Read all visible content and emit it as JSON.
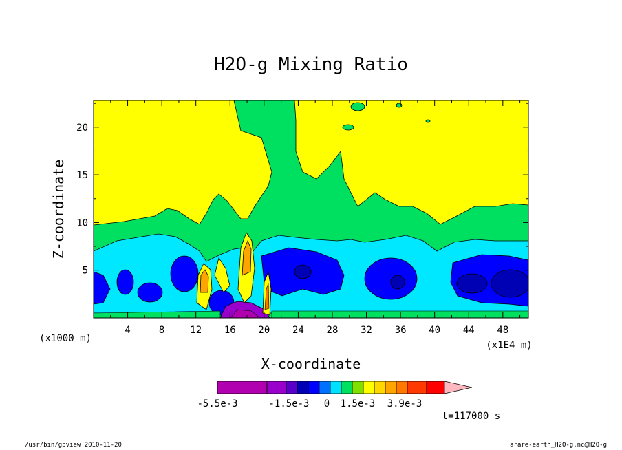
{
  "chart_data": {
    "type": "heatmap",
    "title": "H2O-g Mixing Ratio",
    "xlabel": "X-coordinate",
    "ylabel": "Z-coordinate",
    "x_unit_left": "(x1000 m)",
    "x_unit_right": "(x1E4 m)",
    "xlim": [
      0,
      51
    ],
    "ylim": [
      0,
      22.8
    ],
    "xticks": [
      4,
      8,
      12,
      16,
      20,
      24,
      28,
      32,
      36,
      40,
      44,
      48
    ],
    "yticks": [
      5,
      10,
      15,
      20
    ],
    "time_label": "t=117000 s",
    "colorbar": {
      "labels": [
        "-5.5e-3",
        "-1.5e-3",
        "0",
        "1.5e-3",
        "3.9e-3"
      ],
      "colors": [
        "#b000b0",
        "#9a00cc",
        "#5a00c8",
        "#0000b4",
        "#0000ff",
        "#0070ff",
        "#00e0ff",
        "#00e060",
        "#80e000",
        "#ffff00",
        "#ffd700",
        "#ffa500",
        "#ff7800",
        "#ff3a00",
        "#ff0000",
        "#ff7070",
        "#ffb8c0"
      ]
    },
    "regions": {
      "top_field": "#ffff00",
      "green_band": "#00e060",
      "cyan_band": "#00e8ff",
      "blue_cores": "#0000ff",
      "dark_blue_cores": "#0000b4",
      "purple_cores": "#9a00cc",
      "orange_plumes": "#ffa500"
    }
  },
  "footer": {
    "left": "/usr/bin/gpview   2010-11-20",
    "right": "arare-earth_H2O-g.nc@H2O-g"
  }
}
